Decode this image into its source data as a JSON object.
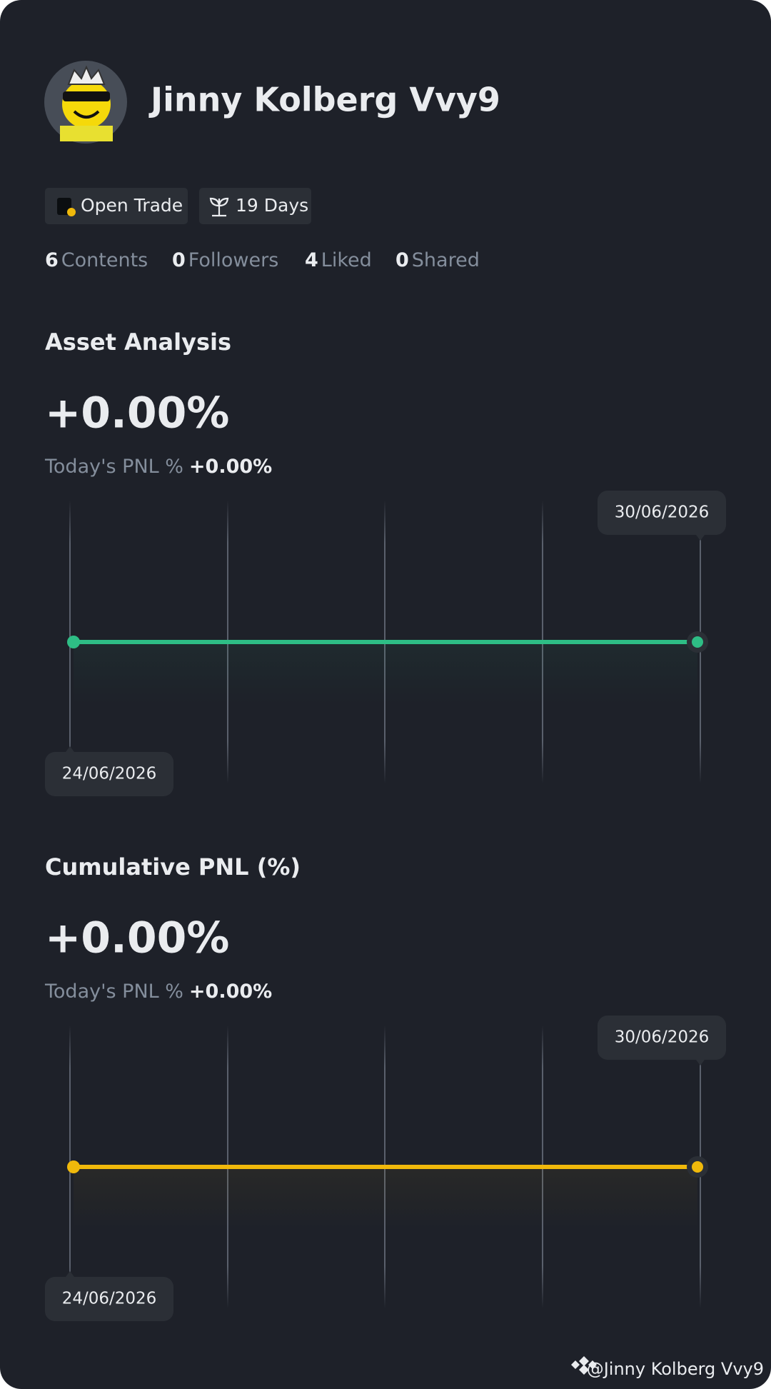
{
  "profile": {
    "name": "Jinny Kolberg Vvy9",
    "badges": [
      "Open Trade",
      "19 Days"
    ],
    "stats": [
      {
        "value": "6",
        "label": "Contents"
      },
      {
        "value": "0",
        "label": "Followers"
      },
      {
        "value": "4",
        "label": "Liked"
      },
      {
        "value": "0",
        "label": "Shared"
      }
    ]
  },
  "sections": [
    {
      "title": "Asset Analysis",
      "total": "+0.00%",
      "today_label": "Today's PNL %",
      "today_value": "+0.00%",
      "chart_data": {
        "type": "line",
        "x": [
          "24/06/2026",
          "30/06/2026"
        ],
        "values": [
          0,
          0
        ],
        "ylim": [
          -1,
          1
        ],
        "color": "#2ebd85"
      }
    },
    {
      "title": "Cumulative PNL (%)",
      "total": "+0.00%",
      "today_label": "Today's PNL %",
      "today_value": "+0.00%",
      "chart_data": {
        "type": "line",
        "x": [
          "24/06/2026",
          "30/06/2026"
        ],
        "values": [
          0,
          0
        ],
        "ylim": [
          -1,
          1
        ],
        "color": "#f0b90b"
      }
    }
  ],
  "footer": "@Jinny Kolberg Vvy9"
}
